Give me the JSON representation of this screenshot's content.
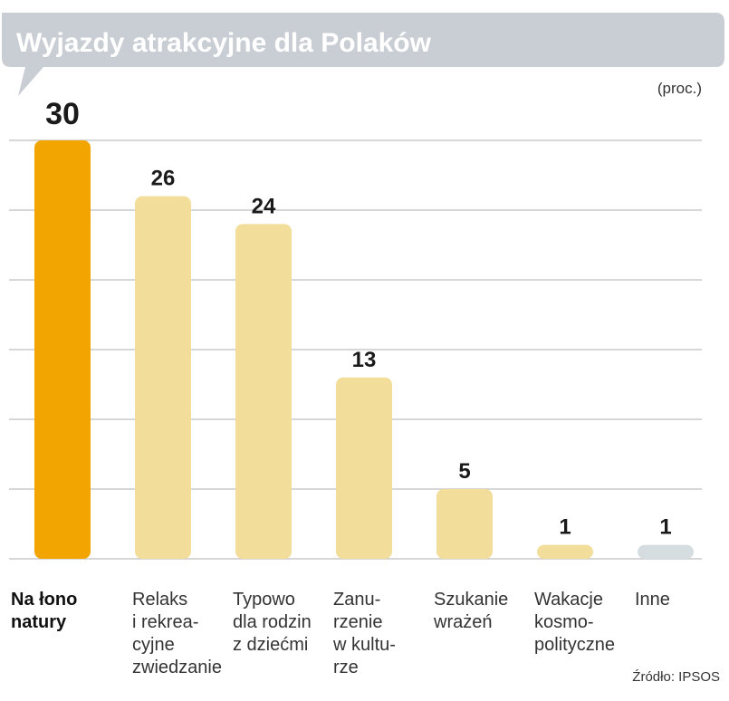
{
  "chart_data": {
    "type": "bar",
    "title": "Wyjazdy atrakcyjne dla Polaków",
    "unit": "(proc.)",
    "categories": [
      "Na łono natury",
      "Relaks i rekreacyjne zwiedzanie",
      "Typowo dla rodzin z dziećmi",
      "Zanurzenie w kulturze",
      "Szukanie wrażeń",
      "Wakacje kosmopolityczne",
      "Inne"
    ],
    "category_label_lines": [
      [
        "Na łono",
        "natury"
      ],
      [
        "Relaks",
        "i rekrea-",
        "cyjne",
        "zwiedzanie"
      ],
      [
        "Typowo",
        "dla rodzin",
        "z dziećmi"
      ],
      [
        "Zanu-",
        "rzenie",
        "w kultu-",
        "rze"
      ],
      [
        "Szukanie",
        "wrażeń"
      ],
      [
        "Wakacje",
        "kosmo-",
        "polityczne"
      ],
      [
        "Inne"
      ]
    ],
    "values": [
      30,
      26,
      24,
      13,
      5,
      1,
      1
    ],
    "value_labels": [
      "30",
      "26",
      "24",
      "13",
      "5",
      "1",
      "1"
    ],
    "bar_colors": [
      "#f2a500",
      "#f3dd9a",
      "#f3dd9a",
      "#f3dd9a",
      "#f3dd9a",
      "#f3dd9a",
      "#d6dde0"
    ],
    "highlight_index": 0,
    "ylim": [
      0,
      30
    ],
    "grid": true,
    "xlabel": "",
    "ylabel": "",
    "source": "Źródło: IPSOS"
  },
  "colors": {
    "title_bar": "#c9ced4",
    "title_text": "#ffffff",
    "grid": "#bfbfbf"
  }
}
